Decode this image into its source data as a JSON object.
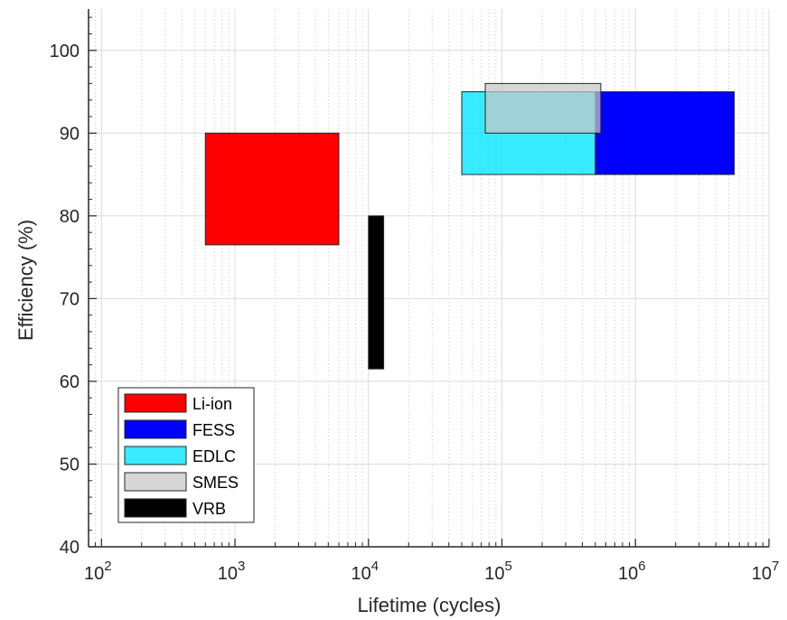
{
  "chart_data": {
    "type": "range-rectangles",
    "title": "",
    "xlabel": "Lifetime (cycles)",
    "ylabel": "Efficiency (%)",
    "xscale": "log",
    "xlim": [
      80,
      10000000
    ],
    "ylim": [
      40,
      105
    ],
    "xticks": [
      {
        "value": 100,
        "base": "10",
        "exp": "2"
      },
      {
        "value": 1000,
        "base": "10",
        "exp": "3"
      },
      {
        "value": 10000,
        "base": "10",
        "exp": "4"
      },
      {
        "value": 100000,
        "base": "10",
        "exp": "5"
      },
      {
        "value": 1000000,
        "base": "10",
        "exp": "6"
      },
      {
        "value": 10000000,
        "base": "10",
        "exp": "7"
      }
    ],
    "yticks": [
      "40",
      "50",
      "60",
      "70",
      "80",
      "90",
      "100"
    ],
    "grid": true,
    "minor_grid": true,
    "legend_position": "bottom-left",
    "series": [
      {
        "name": "Li-ion",
        "color": "#ff0000",
        "alpha": 1.0,
        "x_range": [
          600,
          6000
        ],
        "y_range": [
          76.5,
          90
        ]
      },
      {
        "name": "FESS",
        "color": "#0000ff",
        "alpha": 1.0,
        "x_range": [
          500000,
          5500000
        ],
        "y_range": [
          85,
          95
        ]
      },
      {
        "name": "EDLC",
        "color": "#00e5ff",
        "alpha": 0.78,
        "x_range": [
          50000,
          500000
        ],
        "y_range": [
          85,
          95
        ]
      },
      {
        "name": "SMES",
        "color": "#c8c8c8",
        "alpha": 0.72,
        "x_range": [
          75000,
          550000
        ],
        "y_range": [
          90,
          96
        ]
      },
      {
        "name": "VRB",
        "color": "#000000",
        "alpha": 1.0,
        "x_range": [
          10000,
          13000
        ],
        "y_range": [
          61.5,
          80
        ]
      }
    ]
  }
}
